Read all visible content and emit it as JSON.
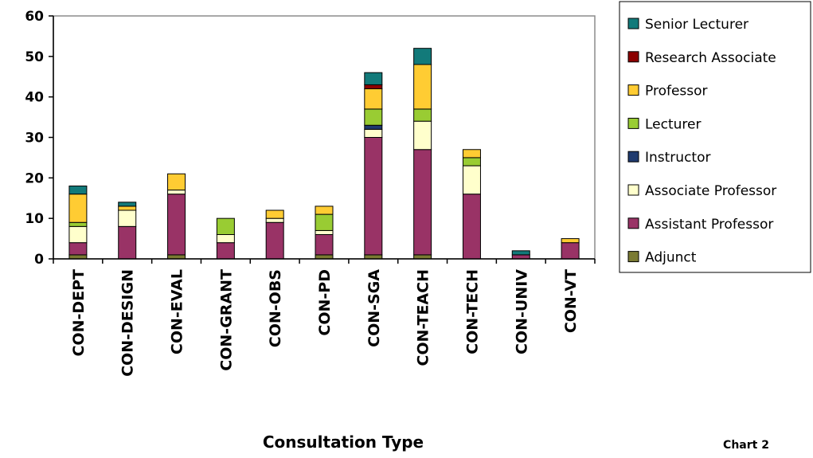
{
  "chart_data": {
    "type": "bar",
    "stacked": true,
    "categories": [
      "CON-DEPT",
      "CON-DESIGN",
      "CON-EVAL",
      "CON-GRANT",
      "CON-OBS",
      "CON-PD",
      "CON-SGA",
      "CON-TEACH",
      "CON-TECH",
      "CON-UNIV",
      "CON-VT"
    ],
    "series": [
      {
        "name": "Adjunct",
        "color": "#7a7a33",
        "values": [
          1,
          0,
          1,
          0,
          0,
          1,
          1,
          1,
          0,
          0,
          0
        ]
      },
      {
        "name": "Assistant Professor",
        "color": "#993366",
        "values": [
          3,
          8,
          15,
          4,
          9,
          5,
          29,
          26,
          16,
          1,
          4
        ]
      },
      {
        "name": "Associate Professor",
        "color": "#ffffcc",
        "values": [
          4,
          4,
          1,
          2,
          1,
          1,
          2,
          7,
          7,
          0,
          0
        ]
      },
      {
        "name": "Instructor",
        "color": "#1f3a6e",
        "values": [
          0,
          0,
          0,
          0,
          0,
          0,
          1,
          0,
          0,
          0,
          0
        ]
      },
      {
        "name": "Lecturer",
        "color": "#99cc33",
        "values": [
          1,
          0,
          0,
          4,
          0,
          4,
          4,
          3,
          2,
          0,
          0
        ]
      },
      {
        "name": "Professor",
        "color": "#ffcc33",
        "values": [
          7,
          1,
          4,
          0,
          2,
          2,
          5,
          11,
          2,
          0,
          1
        ]
      },
      {
        "name": "Research Associate",
        "color": "#8b0000",
        "values": [
          0,
          0,
          0,
          0,
          0,
          0,
          1,
          0,
          0,
          0,
          0
        ]
      },
      {
        "name": "Senior Lecturer",
        "color": "#127a7a",
        "values": [
          2,
          1,
          0,
          0,
          0,
          0,
          3,
          4,
          0,
          1,
          0
        ]
      }
    ],
    "ylim": [
      0,
      60
    ],
    "yticks": [
      "0",
      "10",
      "20",
      "30",
      "40",
      "50",
      "60"
    ],
    "xlabel": "Consultation Type",
    "ylabel": "",
    "legend_position": "right",
    "legend_order": [
      "Senior Lecturer",
      "Research Associate",
      "Professor",
      "Lecturer",
      "Instructor",
      "Associate Professor",
      "Assistant Professor",
      "Adjunct"
    ],
    "grid": false
  },
  "caption": "Chart 2"
}
